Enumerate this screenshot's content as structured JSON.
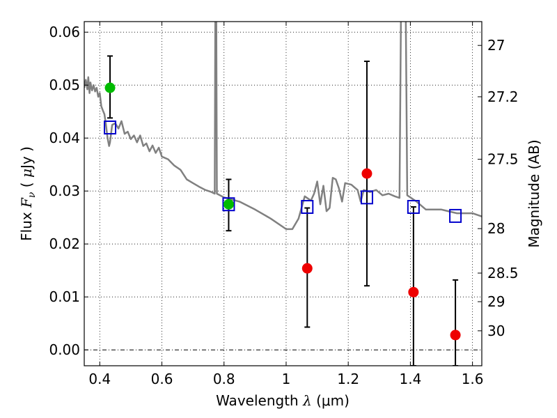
{
  "chart_data": {
    "type": "scatter",
    "title": "",
    "xlabel": {
      "prefix": "Wavelength",
      "symbol": "λ",
      "unit": "(μm)"
    },
    "ylabel": {
      "prefix": "Flux",
      "symbol": "F",
      "subscript": "ν",
      "unit_open": "(",
      "unit_mu": "μ",
      "unit_rest": "Jy",
      "unit_close": ")"
    },
    "ylabel_right": "Magnitude (AB)",
    "xlim": [
      0.35,
      1.63
    ],
    "ylim": [
      -0.003,
      0.062
    ],
    "x_ticks": [
      {
        "value": 0.4,
        "label": "0.4"
      },
      {
        "value": 0.6,
        "label": "0.6"
      },
      {
        "value": 0.8,
        "label": "0.8"
      },
      {
        "value": 1.0,
        "label": "1"
      },
      {
        "value": 1.2,
        "label": "1.2"
      },
      {
        "value": 1.4,
        "label": "1.4"
      },
      {
        "value": 1.6,
        "label": "1.6"
      }
    ],
    "y_ticks": [
      {
        "value": 0.0,
        "label": "0.00"
      },
      {
        "value": 0.01,
        "label": "0.01"
      },
      {
        "value": 0.02,
        "label": "0.02"
      },
      {
        "value": 0.03,
        "label": "0.03"
      },
      {
        "value": 0.04,
        "label": "0.04"
      },
      {
        "value": 0.05,
        "label": "0.05"
      },
      {
        "value": 0.06,
        "label": "0.06"
      }
    ],
    "right_ticks": [
      {
        "flux": 0.0575,
        "label": "27"
      },
      {
        "flux": 0.0478,
        "label": "27.2"
      },
      {
        "flux": 0.036,
        "label": "27.5"
      },
      {
        "flux": 0.0229,
        "label": "28"
      },
      {
        "flux": 0.0145,
        "label": "28.5"
      },
      {
        "flux": 0.0091,
        "label": "29"
      },
      {
        "flux": 0.0036,
        "label": "30"
      }
    ],
    "grid": true,
    "colors": {
      "sed": "#808080",
      "model": "#0000cc",
      "detection": "#00bb00",
      "nondetection": "#ee0000",
      "errorbar": "#000000"
    },
    "sed_spectrum": [
      [
        0.35,
        0.0495
      ],
      [
        0.355,
        0.051
      ],
      [
        0.36,
        0.0492
      ],
      [
        0.363,
        0.0515
      ],
      [
        0.367,
        0.0485
      ],
      [
        0.37,
        0.0505
      ],
      [
        0.375,
        0.049
      ],
      [
        0.38,
        0.05
      ],
      [
        0.385,
        0.0488
      ],
      [
        0.39,
        0.0495
      ],
      [
        0.395,
        0.0478
      ],
      [
        0.4,
        0.0485
      ],
      [
        0.405,
        0.046
      ],
      [
        0.41,
        0.0452
      ],
      [
        0.415,
        0.0445
      ],
      [
        0.42,
        0.0425
      ],
      [
        0.425,
        0.04
      ],
      [
        0.43,
        0.0385
      ],
      [
        0.433,
        0.0392
      ],
      [
        0.44,
        0.0425
      ],
      [
        0.45,
        0.0428
      ],
      [
        0.46,
        0.0418
      ],
      [
        0.47,
        0.0432
      ],
      [
        0.48,
        0.0408
      ],
      [
        0.49,
        0.0412
      ],
      [
        0.5,
        0.0398
      ],
      [
        0.51,
        0.0405
      ],
      [
        0.52,
        0.0392
      ],
      [
        0.53,
        0.0405
      ],
      [
        0.54,
        0.0385
      ],
      [
        0.55,
        0.039
      ],
      [
        0.56,
        0.0375
      ],
      [
        0.57,
        0.0386
      ],
      [
        0.58,
        0.0372
      ],
      [
        0.59,
        0.0382
      ],
      [
        0.6,
        0.0365
      ],
      [
        0.62,
        0.036
      ],
      [
        0.64,
        0.0348
      ],
      [
        0.66,
        0.034
      ],
      [
        0.68,
        0.0322
      ],
      [
        0.7,
        0.0315
      ],
      [
        0.72,
        0.0308
      ],
      [
        0.74,
        0.0302
      ],
      [
        0.76,
        0.0298
      ],
      [
        0.77,
        0.0295
      ],
      [
        0.772,
        0.065
      ],
      [
        0.775,
        0.065
      ],
      [
        0.777,
        0.0295
      ],
      [
        0.8,
        0.0288
      ],
      [
        0.85,
        0.028
      ],
      [
        0.9,
        0.0265
      ],
      [
        0.95,
        0.0248
      ],
      [
        1.0,
        0.0228
      ],
      [
        1.02,
        0.0228
      ],
      [
        1.04,
        0.0248
      ],
      [
        1.06,
        0.029
      ],
      [
        1.08,
        0.0282
      ],
      [
        1.09,
        0.0295
      ],
      [
        1.1,
        0.0318
      ],
      [
        1.11,
        0.0275
      ],
      [
        1.12,
        0.031
      ],
      [
        1.13,
        0.0262
      ],
      [
        1.14,
        0.0268
      ],
      [
        1.15,
        0.0325
      ],
      [
        1.16,
        0.0322
      ],
      [
        1.17,
        0.0305
      ],
      [
        1.18,
        0.028
      ],
      [
        1.19,
        0.0315
      ],
      [
        1.21,
        0.0312
      ],
      [
        1.23,
        0.0302
      ],
      [
        1.24,
        0.028
      ],
      [
        1.25,
        0.0302
      ],
      [
        1.27,
        0.0298
      ],
      [
        1.29,
        0.0302
      ],
      [
        1.31,
        0.0292
      ],
      [
        1.33,
        0.0295
      ],
      [
        1.35,
        0.029
      ],
      [
        1.365,
        0.0287
      ],
      [
        1.37,
        0.065
      ],
      [
        1.385,
        0.065
      ],
      [
        1.39,
        0.0292
      ],
      [
        1.42,
        0.028
      ],
      [
        1.45,
        0.0265
      ],
      [
        1.5,
        0.0265
      ],
      [
        1.55,
        0.0258
      ],
      [
        1.6,
        0.0258
      ],
      [
        1.63,
        0.0252
      ]
    ],
    "model_points": [
      [
        0.433,
        0.042
      ],
      [
        0.815,
        0.0275
      ],
      [
        1.068,
        0.027
      ],
      [
        1.26,
        0.0288
      ],
      [
        1.41,
        0.027
      ],
      [
        1.545,
        0.0253
      ]
    ],
    "detections": [
      {
        "x": 0.433,
        "y": 0.0495,
        "lo": 0.0438,
        "hi": 0.0555
      },
      {
        "x": 0.815,
        "y": 0.0275,
        "lo": 0.0225,
        "hi": 0.0322
      }
    ],
    "nondetections": [
      {
        "x": 1.068,
        "y": 0.0154,
        "lo": 0.0043,
        "hi": 0.0268
      },
      {
        "x": 1.26,
        "y": 0.0333,
        "lo": 0.0121,
        "hi": 0.0545
      },
      {
        "x": 1.41,
        "y": 0.0109,
        "lo": -0.003,
        "hi": 0.027
      },
      {
        "x": 1.545,
        "y": 0.0028,
        "lo": -0.003,
        "hi": 0.0132
      }
    ]
  }
}
